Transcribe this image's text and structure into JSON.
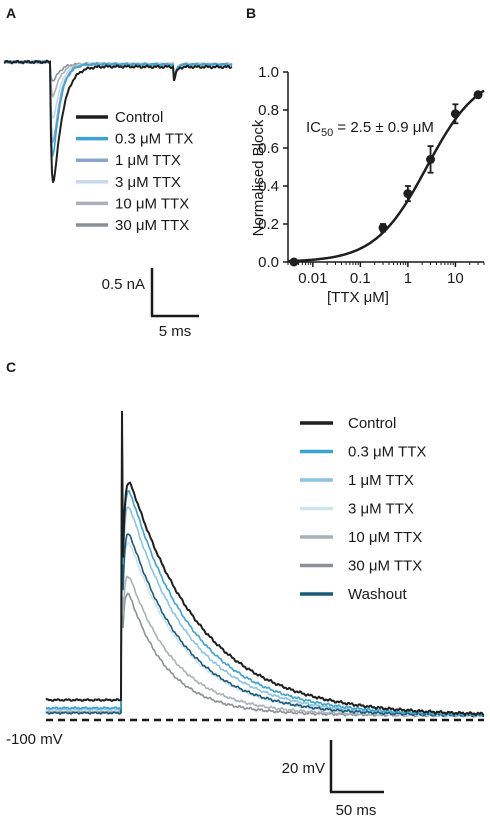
{
  "panels": {
    "a": {
      "letter": "A"
    },
    "b": {
      "letter": "B"
    },
    "c": {
      "letter": "C"
    }
  },
  "chart_data": [
    {
      "panel": "A",
      "type": "line",
      "legend": [
        "Control",
        "0.3 μM TTX",
        "1 μM TTX",
        "3 μM TTX",
        "10 μM TTX",
        "30 μM TTX"
      ],
      "colors": [
        "#1f1f1f",
        "#3aa3cf",
        "#8aa6cf",
        "#c6d8ea",
        "#a9b0ba",
        "#8a9096"
      ],
      "peak_nA": [
        -1.05,
        -0.9,
        -0.78,
        -0.55,
        -0.32,
        -0.18
      ],
      "scale_bar": {
        "current": "0.5 nA",
        "time": "5 ms"
      }
    },
    {
      "panel": "B",
      "type": "scatter",
      "xlabel": "[TTX μM]",
      "ylabel": "Normalised Block",
      "xscale": "log",
      "xlim": [
        0.003,
        40
      ],
      "ylim": [
        0,
        1.0
      ],
      "xticks": [
        "0.01",
        "0.1",
        "1",
        "10"
      ],
      "yticks": [
        "0.0",
        "0.2",
        "0.4",
        "0.6",
        "0.8",
        "1.0"
      ],
      "annotation": {
        "prefix": "IC",
        "sub": "50",
        "suffix": " = 2.5 ± 0.9 μM"
      },
      "points": [
        {
          "x": 0.004,
          "y": 0.0,
          "err": 0.01
        },
        {
          "x": 0.3,
          "y": 0.18,
          "err": 0.02
        },
        {
          "x": 1,
          "y": 0.36,
          "err": 0.04
        },
        {
          "x": 3,
          "y": 0.54,
          "err": 0.07
        },
        {
          "x": 10,
          "y": 0.78,
          "err": 0.05
        },
        {
          "x": 30,
          "y": 0.88,
          "err": 0.01
        }
      ],
      "fit": {
        "ic50": 2.5,
        "hill": 0.8
      }
    },
    {
      "panel": "C",
      "type": "line",
      "legend": [
        "Control",
        "0.3 μM TTX",
        "1 μM TTX",
        "3 μM TTX",
        "10 μM TTX",
        "30 μM TTX",
        "Washout"
      ],
      "colors": [
        "#1f1f1f",
        "#3aa3cf",
        "#8cc3e3",
        "#cfe3ef",
        "#a9b0ba",
        "#8a9096",
        "#1b5a78"
      ],
      "baseline_label": "-100 mV",
      "scale_bar": {
        "voltage": "20 mV",
        "time": "50 ms"
      }
    }
  ]
}
